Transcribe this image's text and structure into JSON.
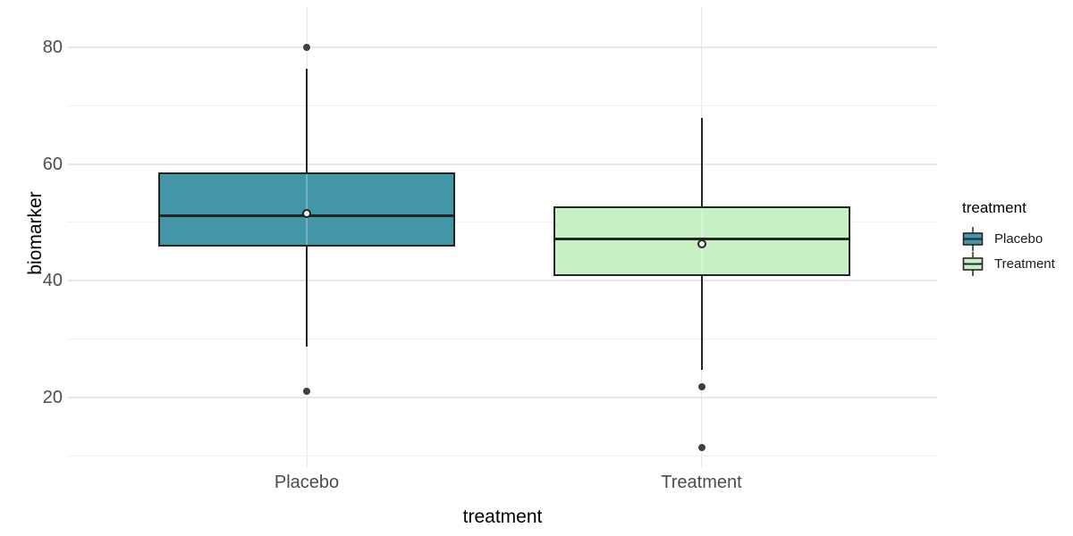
{
  "chart_data": {
    "type": "boxplot",
    "title": "",
    "xlabel": "treatment",
    "ylabel": "biomarker",
    "categories": [
      "Placebo",
      "Treatment"
    ],
    "yticks_major": [
      20,
      40,
      60,
      80
    ],
    "yticks_minor": [
      10,
      30,
      50,
      70
    ],
    "ylim": [
      8.4,
      86.9
    ],
    "grid": "on",
    "legend": {
      "title": "treatment",
      "position": "right",
      "entries": [
        "Placebo",
        "Treatment"
      ]
    },
    "series": [
      {
        "name": "Placebo",
        "fill": "#4296A8",
        "stats": {
          "whisker_low": 28.8,
          "q1": 45.9,
          "median": 51.1,
          "q3": 58.5,
          "whisker_high": 76.3
        },
        "mean": 51.6,
        "outliers": [
          80,
          21
        ]
      },
      {
        "name": "Treatment",
        "fill": "#C7F0C5",
        "stats": {
          "whisker_low": 24.8,
          "q1": 40.8,
          "median": 47.1,
          "q3": 52.8,
          "whisker_high": 67.9
        },
        "mean": 46.4,
        "outliers": [
          21.8,
          11.4
        ]
      }
    ],
    "colors": {
      "box_border": "#252525",
      "median": "#252525",
      "whisker": "#252525",
      "outlier": "#404040",
      "mean_fill": "#FFFFFF",
      "grid_major": "#E7E7E7",
      "grid_minor": "#F1F1F1",
      "tick_label": "#4D4D4D",
      "axis_title": "#000000"
    }
  }
}
